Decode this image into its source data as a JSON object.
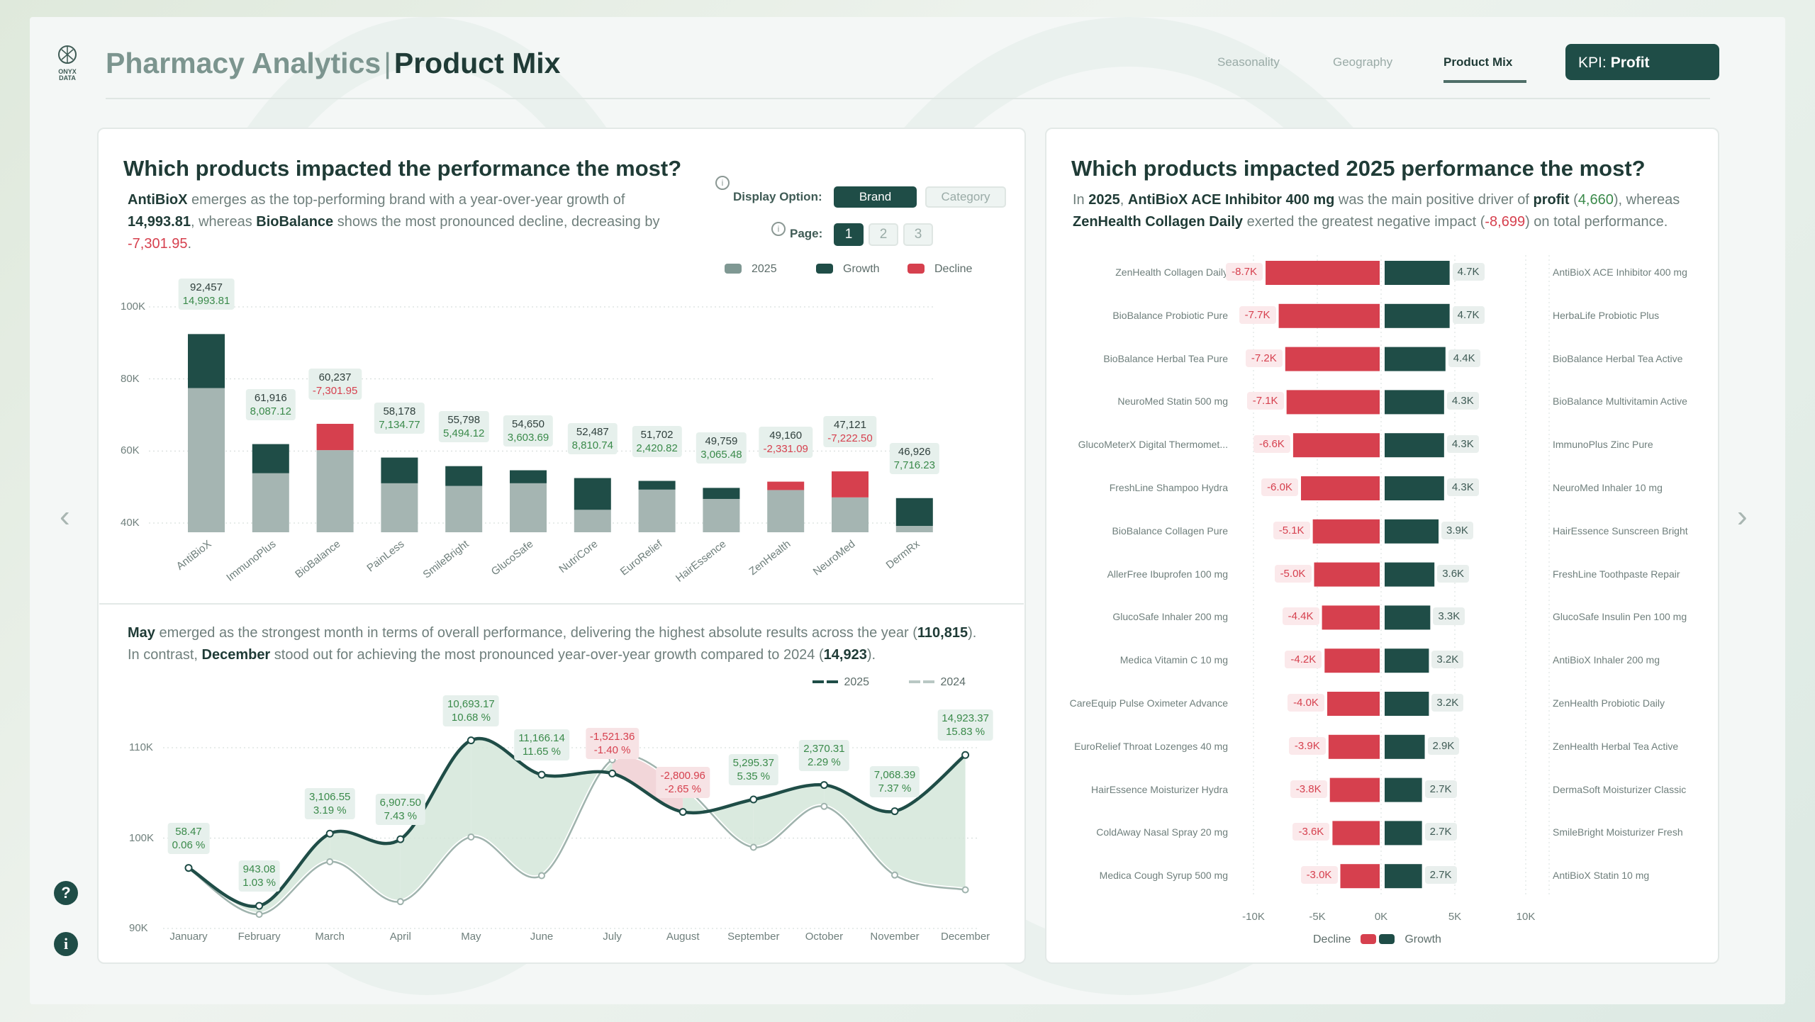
{
  "header": {
    "title_light": "Pharmacy Analytics",
    "title_sep": "|",
    "title_bold": "Product Mix",
    "logo_text": "ONYX DATA",
    "nav": [
      {
        "label": "Seasonality"
      },
      {
        "label": "Geography"
      },
      {
        "label": "Product Mix",
        "active": true
      }
    ],
    "kpi_label": "KPI:",
    "kpi_value": "Profit"
  },
  "left": {
    "title": "Which products impacted the performance the most?",
    "desc": {
      "brand1": "AntiBioX",
      "t1": " emerges as the top-performing brand with a year-over-year growth of ",
      "v1": "14,993.81",
      "t2": ", whereas ",
      "brand2": "BioBalance",
      "t3": " shows the most pronounced decline, decreasing by ",
      "v2": "-7,301.95",
      "t4": "."
    },
    "display_label": "Display Option:",
    "display_options": [
      "Brand",
      "Category"
    ],
    "display_selected": "Brand",
    "page_label": "Page:",
    "pages": [
      "1",
      "2",
      "3"
    ],
    "page_selected": "1",
    "legend": [
      "2025",
      "Growth",
      "Decline"
    ],
    "desc2": {
      "m1": "May",
      "t1": " emerged as the strongest month in terms of overall performance, delivering the highest absolute results across the year (",
      "v1": "110,815",
      "t2": ").",
      "t3": "In contrast, ",
      "m2": "December",
      "t4": " stood out for achieving the most pronounced year-over-year growth compared to 2024 (",
      "v2": "14,923",
      "t5": ")."
    },
    "line_legend": [
      "2025",
      "2024"
    ]
  },
  "right": {
    "title": "Which products impacted 2025 performance the most?",
    "desc": {
      "t1": "In ",
      "y": "2025",
      "t2": ", ",
      "p1": "AntiBioX ACE Inhibitor 400 mg",
      "t3": " was the main positive driver of ",
      "k": "profit",
      "t4": " (",
      "v1": "4,660",
      "t5": "), whereas",
      "p2": "ZenHealth Collagen Daily",
      "t6": " exerted the greatest negative impact (",
      "v2": "-8,699",
      "t7": ") on total performance."
    },
    "legend": [
      "Decline",
      "Growth"
    ]
  },
  "colors": {
    "growth": "#1f4d47",
    "decline": "#d6404e",
    "base2025": "#a5b5b2",
    "line2024": "#9fb3ad",
    "area_pos": "#d3e6d9",
    "area_neg": "#f0cfd2"
  },
  "icons": {
    "prev": "chevron-left-icon",
    "next": "chevron-right-icon",
    "help": "question-icon",
    "about": "info-icon"
  },
  "chart_data": [
    {
      "type": "bar",
      "stacked": true,
      "ylim": [
        37500,
        105000
      ],
      "yticks": [
        "40K",
        "60K",
        "80K",
        "100K"
      ],
      "ytick_values": [
        40000,
        60000,
        80000,
        100000
      ],
      "grid": true,
      "legend": [
        "2025",
        "Growth",
        "Decline"
      ],
      "categories": [
        "AntiBioX",
        "ImmunoPlus",
        "BioBalance",
        "PainLess",
        "SmileBright",
        "GlucoSafe",
        "NutriCore",
        "EuroRelief",
        "HairEssence",
        "ZenHealth",
        "NeuroMed",
        "DermRx"
      ],
      "value_2025": [
        92457,
        61916,
        60237,
        58178,
        55798,
        54650,
        52487,
        51702,
        49759,
        49160,
        47121,
        46926
      ],
      "value_labels": [
        "92,457",
        "61,916",
        "60,237",
        "58,178",
        "55,798",
        "54,650",
        "52,487",
        "51,702",
        "49,759",
        "49,160",
        "47,121",
        "46,926"
      ],
      "change": [
        14993.81,
        8087.12,
        -7301.95,
        7134.77,
        5494.12,
        3603.69,
        8810.74,
        2420.82,
        3065.48,
        -2331.09,
        -7222.5,
        7716.23
      ],
      "change_labels": [
        "14,993.81",
        "8,087.12",
        "-7,301.95",
        "7,134.77",
        "5,494.12",
        "3,603.69",
        "8,810.74",
        "2,420.82",
        "3,065.48",
        "-2,331.09",
        "-7,222.50",
        "7,716.23"
      ]
    },
    {
      "type": "line",
      "ylim": [
        90000,
        112000
      ],
      "yticks": [
        "90K",
        "100K",
        "110K"
      ],
      "ytick_values": [
        90000,
        100000,
        110000
      ],
      "grid": true,
      "legend": [
        "2025",
        "2024"
      ],
      "categories": [
        "January",
        "February",
        "March",
        "April",
        "May",
        "June",
        "July",
        "August",
        "September",
        "October",
        "November",
        "December"
      ],
      "series": [
        {
          "name": "2025",
          "values": [
            96700,
            92504,
            100491,
            99876,
            110815,
            107013,
            107148,
            102896,
            104274,
            105877,
            102975,
            109196
          ]
        },
        {
          "name": "2024",
          "values": [
            96642,
            91561,
            97384,
            92968,
            100122,
            95847,
            108669,
            105697,
            98979,
            103507,
            95907,
            94273
          ]
        }
      ],
      "diff_labels": [
        "58.47",
        "943.08",
        "3,106.55",
        "6,907.50",
        "10,693.17",
        "11,166.14",
        "-1,521.36",
        "-2,800.96",
        "5,295.37",
        "2,370.31",
        "7,068.39",
        "14,923.37"
      ],
      "pct_labels": [
        "0.06 %",
        "1.03 %",
        "3.19 %",
        "7.43 %",
        "10.68 %",
        "11.65 %",
        "-1.40 %",
        "-2.65 %",
        "5.35 %",
        "2.29 %",
        "7.37 %",
        "15.83 %"
      ]
    },
    {
      "type": "bar",
      "orientation": "horizontal",
      "diverging": true,
      "xlim": [
        -10000,
        10000
      ],
      "xticks": [
        "-10K",
        "-5K",
        "0K",
        "5K",
        "10K"
      ],
      "xtick_values": [
        -10000,
        -5000,
        0,
        5000,
        10000
      ],
      "legend": [
        "Decline",
        "Growth"
      ],
      "decline_products": [
        "ZenHealth Collagen Daily",
        "BioBalance Probiotic Pure",
        "BioBalance Herbal Tea Pure",
        "NeuroMed Statin 500 mg",
        "GlucoMeterX Digital Thermomet...",
        "FreshLine Shampoo Hydra",
        "BioBalance Collagen Pure",
        "AllerFree Ibuprofen 100 mg",
        "GlucoSafe Inhaler 200 mg",
        "Medica Vitamin C 10 mg",
        "CareEquip Pulse Oximeter Advance",
        "EuroRelief Throat Lozenges 40 mg",
        "HairEssence Moisturizer Hydra",
        "ColdAway Nasal Spray 20 mg",
        "Medica Cough Syrup 500 mg"
      ],
      "decline_values": [
        -8700,
        -7700,
        -7200,
        -7100,
        -6600,
        -6000,
        -5100,
        -5000,
        -4400,
        -4200,
        -4000,
        -3900,
        -3800,
        -3600,
        -3000
      ],
      "decline_labels": [
        "-8.7K",
        "-7.7K",
        "-7.2K",
        "-7.1K",
        "-6.6K",
        "-6.0K",
        "-5.1K",
        "-5.0K",
        "-4.4K",
        "-4.2K",
        "-4.0K",
        "-3.9K",
        "-3.8K",
        "-3.6K",
        "-3.0K"
      ],
      "growth_products": [
        "AntiBioX ACE Inhibitor 400 mg",
        "HerbaLife Probiotic Plus",
        "BioBalance Herbal Tea Active",
        "BioBalance Multivitamin Active",
        "ImmunoPlus Zinc Pure",
        "NeuroMed Inhaler 10 mg",
        "HairEssence Sunscreen Bright",
        "FreshLine Toothpaste Repair",
        "GlucoSafe Insulin Pen 100 mg",
        "AntiBioX Inhaler 200 mg",
        "ZenHealth Probiotic Daily",
        "ZenHealth Herbal Tea Active",
        "DermaSoft Moisturizer Classic",
        "SmileBright Moisturizer Fresh",
        "AntiBioX Statin 10 mg"
      ],
      "growth_values": [
        4700,
        4700,
        4400,
        4300,
        4300,
        4300,
        3900,
        3600,
        3300,
        3200,
        3200,
        2900,
        2700,
        2700,
        2700
      ],
      "growth_labels": [
        "4.7K",
        "4.7K",
        "4.4K",
        "4.3K",
        "4.3K",
        "4.3K",
        "3.9K",
        "3.6K",
        "3.3K",
        "3.2K",
        "3.2K",
        "2.9K",
        "2.7K",
        "2.7K",
        "2.7K"
      ]
    }
  ]
}
